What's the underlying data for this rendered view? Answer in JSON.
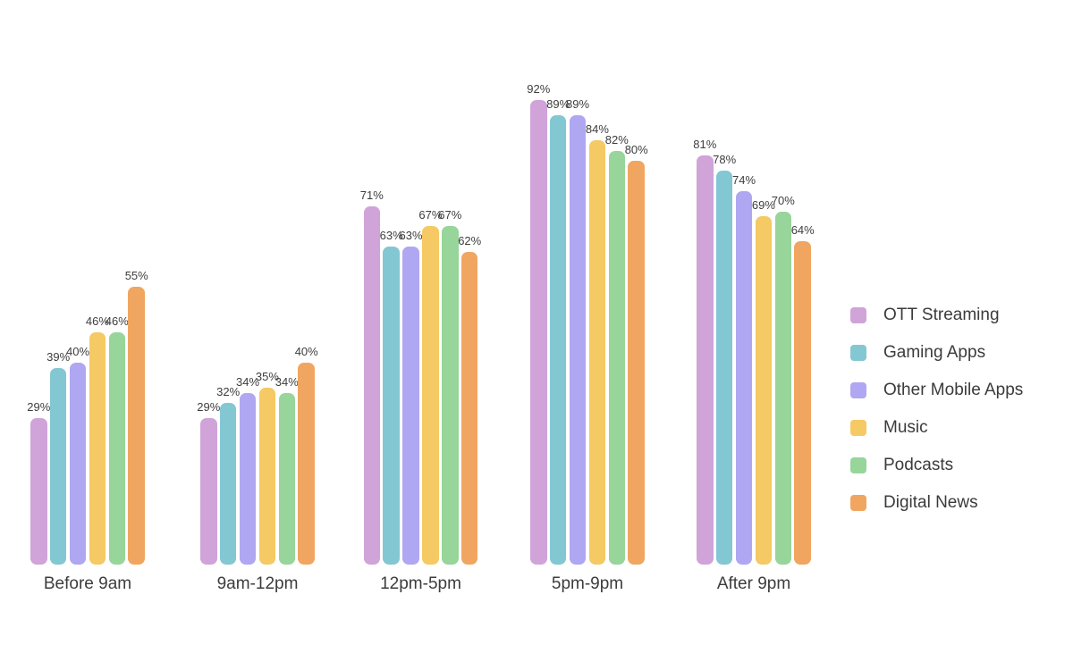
{
  "chart_data": {
    "type": "bar",
    "categories": [
      "Before 9am",
      "9am-12pm",
      "12pm-5pm",
      "5pm-9pm",
      "After 9pm"
    ],
    "series": [
      {
        "name": "OTT Streaming",
        "color": "#D0A3D9",
        "values": [
          29,
          29,
          71,
          92,
          81
        ]
      },
      {
        "name": "Gaming Apps",
        "color": "#83C7D2",
        "values": [
          39,
          32,
          63,
          89,
          78
        ]
      },
      {
        "name": "Other Mobile Apps",
        "color": "#AFA7F1",
        "values": [
          40,
          34,
          63,
          89,
          74
        ]
      },
      {
        "name": "Music",
        "color": "#F5C963",
        "values": [
          46,
          35,
          67,
          84,
          69
        ]
      },
      {
        "name": "Podcasts",
        "color": "#97D59B",
        "values": [
          46,
          34,
          67,
          82,
          70
        ]
      },
      {
        "name": "Digital News",
        "color": "#F0A660",
        "values": [
          55,
          40,
          62,
          80,
          64
        ]
      }
    ],
    "value_suffix": "%",
    "ylim": [
      0,
      100
    ],
    "grid": false,
    "axes_visible": false,
    "legend_position": "right"
  },
  "colors": {
    "background": "#ffffff",
    "value_label_text": "#3d3d3d",
    "category_label_text": "#3c3c3c",
    "legend_text": "#3b3b3b"
  }
}
